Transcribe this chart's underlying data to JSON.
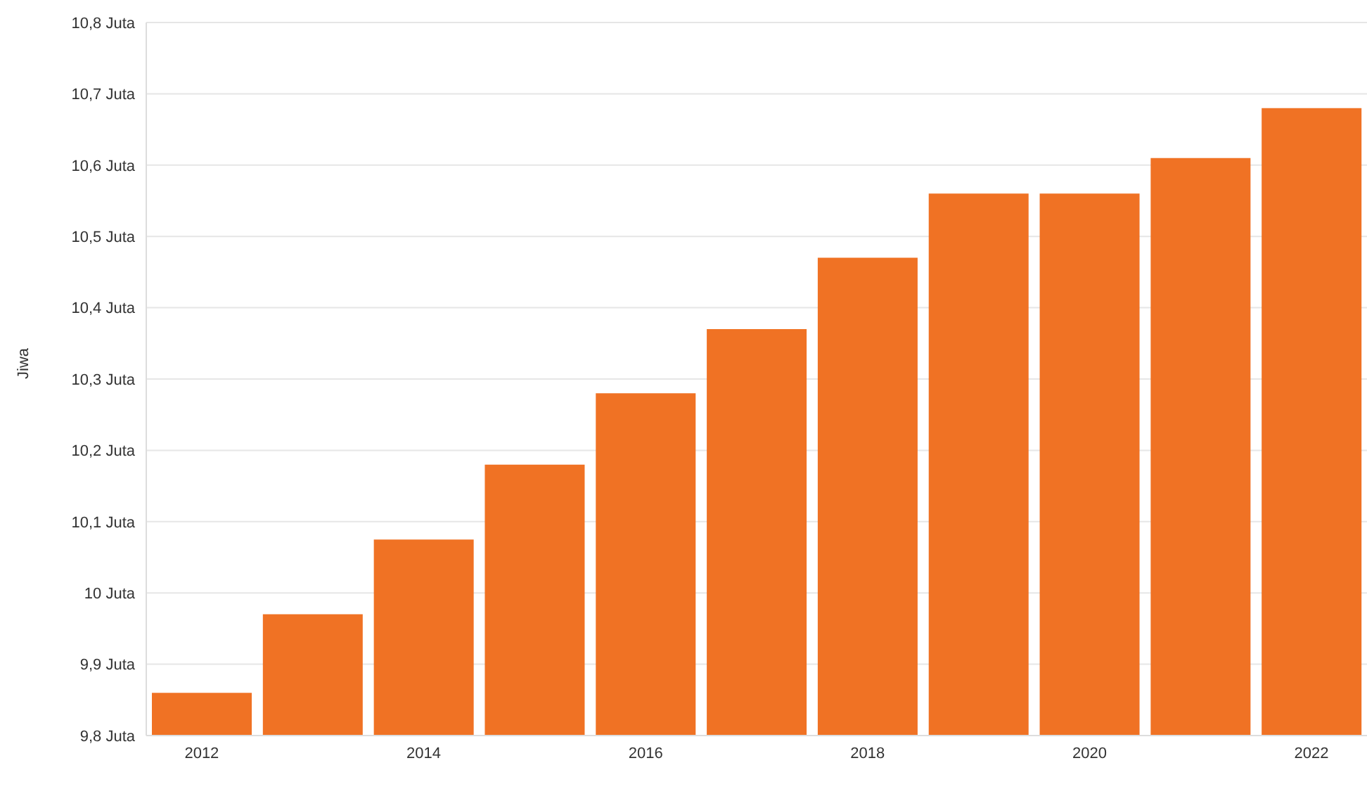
{
  "chart_data": {
    "type": "bar",
    "ylabel": "Jiwa",
    "categories": [
      "2012",
      null,
      "2014",
      null,
      "2016",
      null,
      "2018",
      null,
      "2020",
      null,
      "2022"
    ],
    "values": [
      9.86,
      9.97,
      10.075,
      10.18,
      10.28,
      10.37,
      10.47,
      10.56,
      10.56,
      10.61,
      10.68
    ],
    "color": "#f07224",
    "ylim": [
      9.8,
      10.8
    ],
    "yticks": [
      {
        "value": 9.8,
        "label": "9,8 Juta"
      },
      {
        "value": 9.9,
        "label": "9,9 Juta"
      },
      {
        "value": 10,
        "label": "10 Juta"
      },
      {
        "value": 10.1,
        "label": "10,1 Juta"
      },
      {
        "value": 10.2,
        "label": "10,2 Juta"
      },
      {
        "value": 10.3,
        "label": "10,3 Juta"
      },
      {
        "value": 10.4,
        "label": "10,4 Juta"
      },
      {
        "value": 10.5,
        "label": "10,5 Juta"
      },
      {
        "value": 10.6,
        "label": "10,6 Juta"
      },
      {
        "value": 10.7,
        "label": "10,7 Juta"
      },
      {
        "value": 10.8,
        "label": "10,8 Juta"
      }
    ],
    "grid": "y",
    "legend": false
  }
}
